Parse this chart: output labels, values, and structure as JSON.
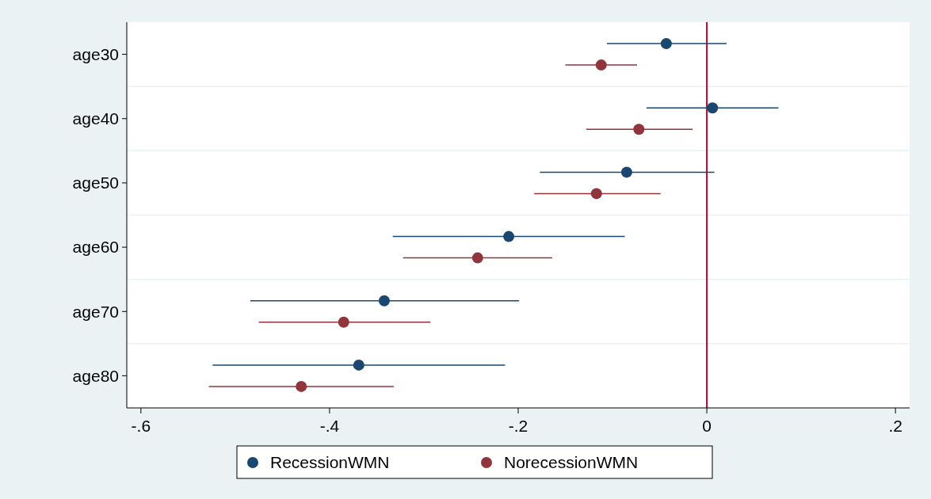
{
  "chart_data": {
    "type": "scatter",
    "orientation": "horizontal",
    "categories": [
      "age30",
      "age40",
      "age50",
      "age60",
      "age70",
      "age80"
    ],
    "series": [
      {
        "name": "RecessionWMN",
        "color": "#1a476f",
        "values": [
          -0.043,
          0.006,
          -0.085,
          -0.21,
          -0.342,
          -0.369
        ],
        "errors": [
          [
            -0.106,
            0.021
          ],
          [
            -0.064,
            0.076
          ],
          [
            -0.177,
            0.008
          ],
          [
            -0.333,
            -0.087
          ],
          [
            -0.484,
            -0.199
          ],
          [
            -0.524,
            -0.214
          ]
        ]
      },
      {
        "name": "NorecessionWMN",
        "color": "#90353b",
        "values": [
          -0.112,
          -0.072,
          -0.117,
          -0.243,
          -0.385,
          -0.43
        ],
        "errors": [
          [
            -0.15,
            -0.074
          ],
          [
            -0.128,
            -0.015
          ],
          [
            -0.183,
            -0.049
          ],
          [
            -0.322,
            -0.164
          ],
          [
            -0.475,
            -0.293
          ],
          [
            -0.528,
            -0.332
          ]
        ]
      }
    ],
    "xlim": [
      -0.615,
      0.215
    ],
    "xticks": [
      {
        "value": -0.6,
        "label": "-.6"
      },
      {
        "value": -0.4,
        "label": "-.4"
      },
      {
        "value": -0.2,
        "label": "-.2"
      },
      0,
      {
        "value": 0.2,
        "label": ".2"
      }
    ],
    "ref_lines": [
      {
        "axis": "x",
        "value": 0,
        "color": "#c10534"
      }
    ],
    "grid": "y",
    "legend": "bottom",
    "marker": "circle"
  }
}
